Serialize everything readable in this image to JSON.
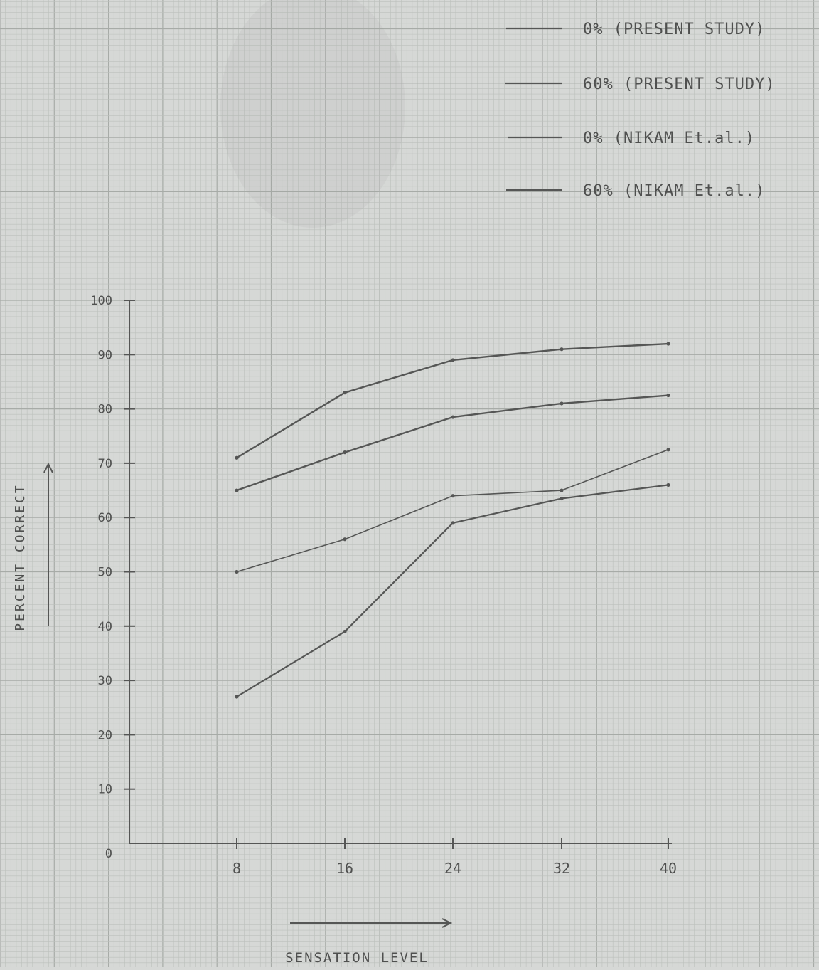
{
  "chart_data": {
    "type": "line",
    "title": "",
    "xlabel": "SENSATION LEVEL",
    "ylabel": "PERCENT CORRECT",
    "x": [
      8,
      16,
      24,
      32,
      40
    ],
    "x_tick_labels": [
      "8",
      "16",
      "24",
      "32",
      "40"
    ],
    "y_tick_labels": [
      "0",
      "10",
      "20",
      "30",
      "40",
      "50",
      "60",
      "70",
      "80",
      "90",
      "100"
    ],
    "ylim": [
      0,
      100
    ],
    "grid": true,
    "legend_position": "top-right",
    "series": [
      {
        "name": "0% (PRESENT STUDY)",
        "values": [
          71,
          83,
          89,
          91,
          92
        ]
      },
      {
        "name": "60% (PRESENT STUDY)",
        "values": [
          65,
          72,
          78.5,
          81,
          82.5
        ]
      },
      {
        "name": "0% (NIKAM Et.al.)",
        "values": [
          50,
          56,
          64,
          65,
          72.5
        ]
      },
      {
        "name": "60% (NIKAM Et.al.)",
        "values": [
          27,
          39,
          59,
          63.5,
          66
        ]
      }
    ],
    "colors": {
      "paper": "#d6d8d6",
      "grid_minor": "#bcc0bc",
      "grid_major": "#a7aba7",
      "ink": "#555655"
    }
  }
}
